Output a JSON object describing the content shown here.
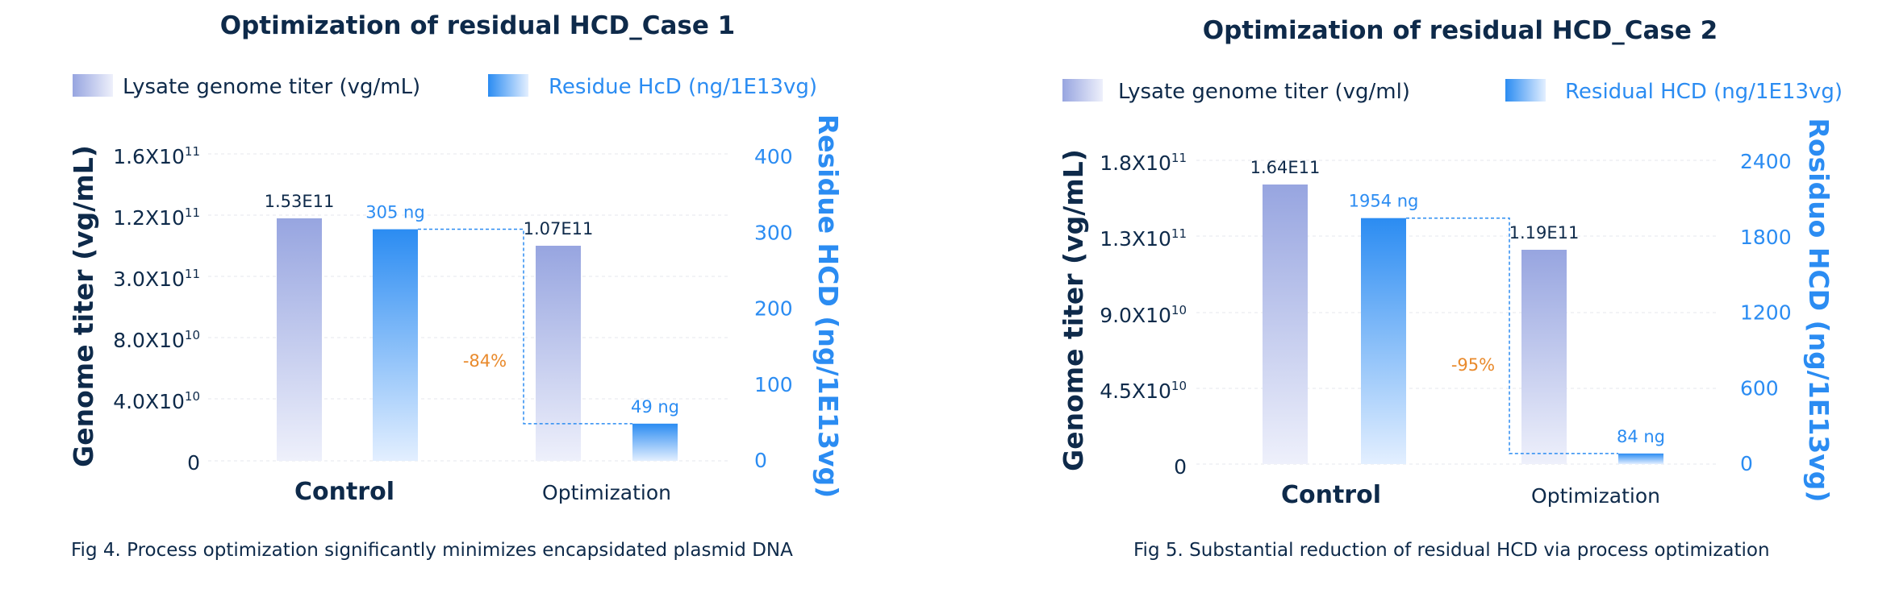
{
  "colors": {
    "dark_text": "#0e2a4a",
    "blue_accent": "#2b8cf2",
    "percent_orange": "#e98a2c",
    "titer_bar_top": "#97a5e0",
    "titer_bar_bottom": "#eef0fb",
    "hcd_bar_top": "#2b8cf2",
    "hcd_bar_bottom": "#e3efff"
  },
  "chart_data": [
    {
      "type": "bar",
      "title": "Optimization of residual HCD_Case 1",
      "legend": {
        "titer": "Lysate genome titer (vg/mL)",
        "hcd": "Residue HcD (ng/1E13vg)"
      },
      "ylabel_left": "Genome titer (vg/mL)",
      "ylabel_right": "Residue HCD (ng/1E13vg)",
      "left_ticks": [
        "0",
        "4.0X10",
        "8.0X10",
        "3.0X10",
        "1.2X10",
        "1.6X10"
      ],
      "left_tick_exps": [
        "",
        "10",
        "10",
        "11",
        "11",
        "11"
      ],
      "ylim_right": [
        0,
        400
      ],
      "right_ticks": [
        "0",
        "100",
        "200",
        "300",
        "400"
      ],
      "categories": [
        "Control",
        "Optimization"
      ],
      "series": [
        {
          "name": "Lysate genome titer (vg/mL)",
          "values": [
            153000000000.0,
            107000000000.0
          ],
          "labels": [
            "1.53E11",
            "1.07E11"
          ],
          "axis": "left"
        },
        {
          "name": "Residue HcD (ng/1E13vg)",
          "values": [
            305,
            49
          ],
          "labels": [
            "305 ng",
            "49 ng"
          ],
          "axis": "right"
        }
      ],
      "reduction": "-84%",
      "caption": "Fig 4. Process optimization significantly minimizes encapsidated plasmid DNA"
    },
    {
      "type": "bar",
      "title": "Optimization of residual HCD_Case 2",
      "legend": {
        "titer": "Lysate genome titer (vg/ml)",
        "hcd": "Residual HCD (ng/1E13vg)"
      },
      "ylabel_left": "Genome titer (vg/mL)",
      "ylabel_right": "Rosiduo HCD (ng/1E13vg)",
      "left_ticks": [
        "0",
        "4.5X10",
        "9.0X10",
        "1.3X10",
        "1.8X10"
      ],
      "left_tick_exps": [
        "",
        "10",
        "10",
        "11",
        "11"
      ],
      "ylim_right": [
        0,
        2400
      ],
      "right_ticks": [
        "0",
        "600",
        "1200",
        "1800",
        "2400"
      ],
      "categories": [
        "Control",
        "Optimization"
      ],
      "series": [
        {
          "name": "Lysate genome titer (vg/ml)",
          "values": [
            164000000000.0,
            119000000000.0
          ],
          "labels": [
            "1.64E11",
            "1.19E11"
          ],
          "axis": "left"
        },
        {
          "name": "Residual HCD (ng/1E13vg)",
          "values": [
            1954,
            84
          ],
          "labels": [
            "1954 ng",
            "84 ng"
          ],
          "axis": "right"
        }
      ],
      "reduction": "-95%",
      "caption": "Fig 5. Substantial reduction of residual HCD via process optimization"
    }
  ]
}
